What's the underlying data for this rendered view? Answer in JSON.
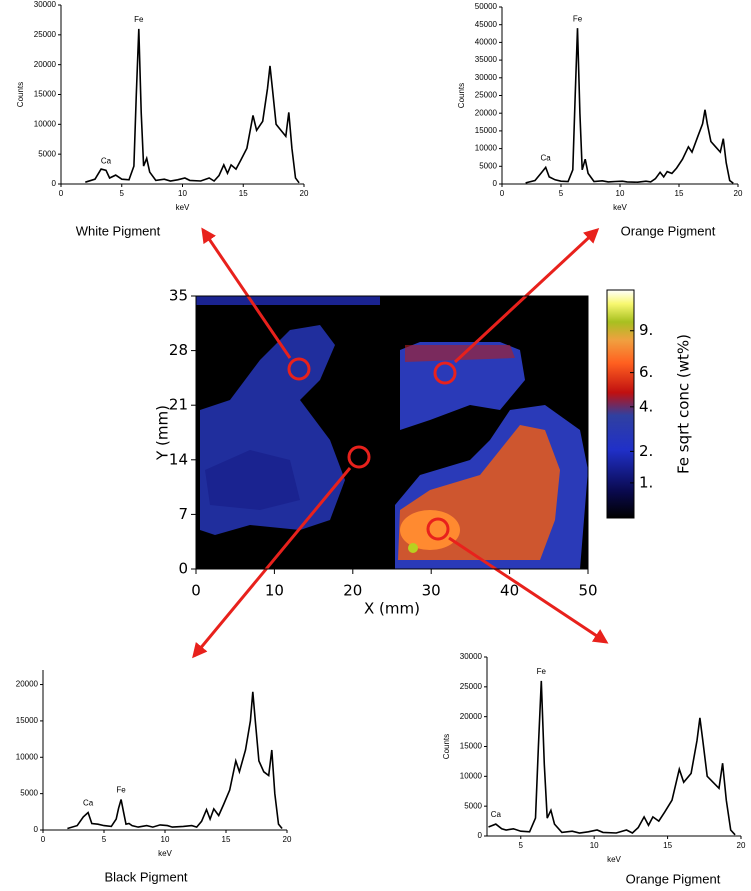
{
  "chart_data": [
    {
      "type": "line",
      "caption": "White Pigment",
      "xlabel": "keV",
      "ylabel": "Counts",
      "color": "#000000",
      "xlim": [
        0,
        20
      ],
      "xticks": [
        0,
        5,
        10,
        15,
        20
      ],
      "ylim": [
        0,
        30000
      ],
      "yticks": [
        0,
        5000,
        10000,
        15000,
        20000,
        25000,
        30000
      ],
      "annotations": [
        {
          "text": "Ca",
          "x": 3.7
        },
        {
          "text": "Fe",
          "x": 6.4
        }
      ],
      "x": [
        2.0,
        2.8,
        3.3,
        3.7,
        4.0,
        4.5,
        5.0,
        5.6,
        6.0,
        6.2,
        6.4,
        6.6,
        6.8,
        7.05,
        7.3,
        7.8,
        8.5,
        9.0,
        9.6,
        10.2,
        10.6,
        11.5,
        12.2,
        12.6,
        13.0,
        13.4,
        13.7,
        14.0,
        14.4,
        14.8,
        15.3,
        15.8,
        16.1,
        16.6,
        17.0,
        17.2,
        17.4,
        17.7,
        18.1,
        18.5,
        18.75,
        19.0,
        19.3,
        19.6
      ],
      "values": [
        300,
        800,
        2500,
        2300,
        1000,
        1500,
        800,
        700,
        3000,
        15000,
        26000,
        12000,
        3000,
        4300,
        2000,
        600,
        800,
        500,
        700,
        1000,
        600,
        500,
        1000,
        500,
        1400,
        3200,
        1800,
        3200,
        2500,
        4000,
        6000,
        11500,
        9000,
        10500,
        16000,
        19800,
        16000,
        10000,
        9000,
        8000,
        12000,
        6000,
        1000,
        200
      ]
    },
    {
      "type": "line",
      "caption": "Orange Pigment",
      "xlabel": "keV",
      "ylabel": "Counts",
      "color": "#000000",
      "xlim": [
        0,
        20
      ],
      "xticks": [
        0,
        5,
        10,
        15,
        20
      ],
      "ylim": [
        0,
        50000
      ],
      "yticks": [
        0,
        5000,
        10000,
        15000,
        20000,
        25000,
        30000,
        35000,
        40000,
        45000,
        50000
      ],
      "annotations": [
        {
          "text": "Ca",
          "x": 3.7
        },
        {
          "text": "Fe",
          "x": 6.4
        }
      ],
      "x": [
        2.0,
        2.8,
        3.3,
        3.7,
        4.0,
        4.5,
        5.0,
        5.6,
        6.0,
        6.2,
        6.4,
        6.6,
        6.8,
        7.05,
        7.3,
        7.8,
        8.5,
        9.0,
        9.6,
        10.2,
        10.6,
        11.5,
        12.2,
        12.6,
        13.0,
        13.4,
        13.7,
        14.0,
        14.4,
        14.8,
        15.3,
        15.8,
        16.1,
        16.6,
        17.0,
        17.2,
        17.4,
        17.7,
        18.1,
        18.5,
        18.75,
        19.0,
        19.3,
        19.6
      ],
      "values": [
        300,
        1000,
        3000,
        4700,
        2000,
        1200,
        800,
        700,
        4000,
        25000,
        44000,
        20000,
        4000,
        7000,
        3000,
        700,
        900,
        600,
        700,
        800,
        600,
        500,
        800,
        600,
        1500,
        3300,
        2000,
        3500,
        3000,
        4500,
        7000,
        10500,
        9000,
        13500,
        17000,
        21000,
        17000,
        12000,
        10500,
        9000,
        12800,
        6000,
        1000,
        200
      ]
    },
    {
      "type": "line",
      "caption": "Black Pigment",
      "xlabel": "keV",
      "color": "#000000",
      "xlim": [
        0,
        20
      ],
      "xticks": [
        0,
        5,
        10,
        15,
        20
      ],
      "ylim": [
        0,
        22000
      ],
      "yticks": [
        0,
        5000,
        10000,
        15000,
        20000
      ],
      "annotations": [
        {
          "text": "Ca",
          "x": 3.7
        },
        {
          "text": "Fe",
          "x": 6.4
        }
      ],
      "x": [
        2.0,
        2.8,
        3.3,
        3.7,
        4.0,
        4.5,
        5.0,
        5.6,
        6.0,
        6.2,
        6.4,
        6.6,
        6.8,
        7.05,
        7.3,
        7.8,
        8.5,
        9.0,
        9.6,
        10.2,
        10.6,
        11.5,
        12.2,
        12.6,
        13.0,
        13.4,
        13.7,
        14.0,
        14.4,
        14.8,
        15.3,
        15.8,
        16.1,
        16.6,
        17.0,
        17.2,
        17.4,
        17.7,
        18.1,
        18.5,
        18.75,
        19.0,
        19.3,
        19.6
      ],
      "values": [
        200,
        600,
        1800,
        2400,
        900,
        800,
        600,
        500,
        1500,
        3000,
        4200,
        2500,
        800,
        900,
        600,
        400,
        600,
        400,
        700,
        600,
        400,
        500,
        600,
        400,
        1200,
        2800,
        1500,
        2900,
        2000,
        3500,
        5500,
        9500,
        8000,
        11000,
        15000,
        19000,
        15000,
        9500,
        8000,
        7500,
        11000,
        5000,
        800,
        200
      ]
    },
    {
      "type": "line",
      "caption": "Orange Pigment",
      "xlabel": "keV",
      "ylabel": "Counts",
      "color": "#000000",
      "xlim": [
        2.7,
        20
      ],
      "xticks": [
        5,
        10,
        15,
        20
      ],
      "ylim": [
        0,
        30000
      ],
      "yticks": [
        0,
        5000,
        10000,
        15000,
        20000,
        25000,
        30000
      ],
      "annotations": [
        {
          "text": "Ca",
          "x": 3.3
        },
        {
          "text": "Fe",
          "x": 6.4
        }
      ],
      "x": [
        2.8,
        3.3,
        3.7,
        4.0,
        4.5,
        5.0,
        5.6,
        6.0,
        6.2,
        6.4,
        6.6,
        6.8,
        7.05,
        7.3,
        7.8,
        8.5,
        9.0,
        9.6,
        10.2,
        10.6,
        11.5,
        12.2,
        12.6,
        13.0,
        13.4,
        13.7,
        14.0,
        14.4,
        14.8,
        15.3,
        15.8,
        16.1,
        16.6,
        17.0,
        17.2,
        17.4,
        17.7,
        18.1,
        18.5,
        18.75,
        19.0,
        19.3,
        19.6
      ],
      "values": [
        1500,
        2000,
        1200,
        1000,
        1200,
        800,
        700,
        3000,
        15000,
        26000,
        12000,
        3000,
        4300,
        2000,
        600,
        800,
        500,
        700,
        1000,
        600,
        500,
        1000,
        500,
        1400,
        3200,
        1800,
        3200,
        2500,
        4000,
        6000,
        11200,
        9000,
        10500,
        16000,
        19800,
        16000,
        10000,
        9000,
        8000,
        12200,
        6000,
        1000,
        200
      ]
    },
    {
      "type": "heatmap",
      "xlabel": "X (mm)",
      "ylabel": "Y (mm)",
      "xlim": [
        0,
        50
      ],
      "xticks": [
        0,
        10,
        20,
        30,
        40,
        50
      ],
      "ylim": [
        0,
        35
      ],
      "yticks": [
        0,
        7,
        14,
        21,
        28,
        35
      ],
      "colorbar": {
        "label": "Fe sqrt conc (wt%)",
        "scale": "sqrt",
        "lim": [
          0.29,
          12.5
        ],
        "ticks": [
          {
            "value": 1,
            "label": "1."
          },
          {
            "value": 2,
            "label": "2."
          },
          {
            "value": 4,
            "label": "4."
          },
          {
            "value": 6,
            "label": "6."
          },
          {
            "value": 9,
            "label": "9."
          }
        ]
      }
    }
  ]
}
